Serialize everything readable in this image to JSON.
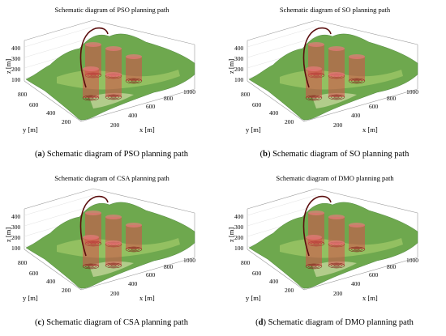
{
  "chart_data": [
    {
      "type": "surface",
      "title": "Schematic diagram of PSO planning path",
      "xlabel": "x [m]",
      "ylabel": "y [m]",
      "zlabel": "z [m]",
      "xticks": [
        "200",
        "400",
        "600",
        "800",
        "1000"
      ],
      "yticks": [
        "200",
        "400",
        "600",
        "800"
      ],
      "zticks": [
        "100",
        "200",
        "300",
        "400"
      ],
      "caption_letter": "a",
      "caption": " Schematic diagram of PSO planning path"
    },
    {
      "type": "surface",
      "title": "Schematic diagram of SO planning path",
      "xlabel": "x [m]",
      "ylabel": "y [m]",
      "zlabel": "z [m]",
      "xticks": [
        "200",
        "400",
        "600",
        "800",
        "1000"
      ],
      "yticks": [
        "200",
        "400",
        "600",
        "800"
      ],
      "zticks": [
        "100",
        "200",
        "300",
        "400"
      ],
      "caption_letter": "b",
      "caption": " Schematic diagram of SO planning path"
    },
    {
      "type": "surface",
      "title": "Schematic diagram of CSA planning path",
      "xlabel": "x [m]",
      "ylabel": "y [m]",
      "zlabel": "z [m]",
      "xticks": [
        "200",
        "400",
        "600",
        "800",
        "1000"
      ],
      "yticks": [
        "200",
        "400",
        "600",
        "800"
      ],
      "zticks": [
        "100",
        "200",
        "300",
        "400"
      ],
      "caption_letter": "c",
      "caption": " Schematic diagram of CSA planning path"
    },
    {
      "type": "surface",
      "title": "Schematic diagram of DMO planning path",
      "xlabel": "x [m]",
      "ylabel": "y [m]",
      "zlabel": "z [m]",
      "xticks": [
        "200",
        "400",
        "600",
        "800",
        "1000"
      ],
      "yticks": [
        "200",
        "400",
        "600",
        "800"
      ],
      "zticks": [
        "100",
        "200",
        "300",
        "400"
      ],
      "caption_letter": "d",
      "caption": " Schematic diagram of DMO planning path"
    }
  ]
}
